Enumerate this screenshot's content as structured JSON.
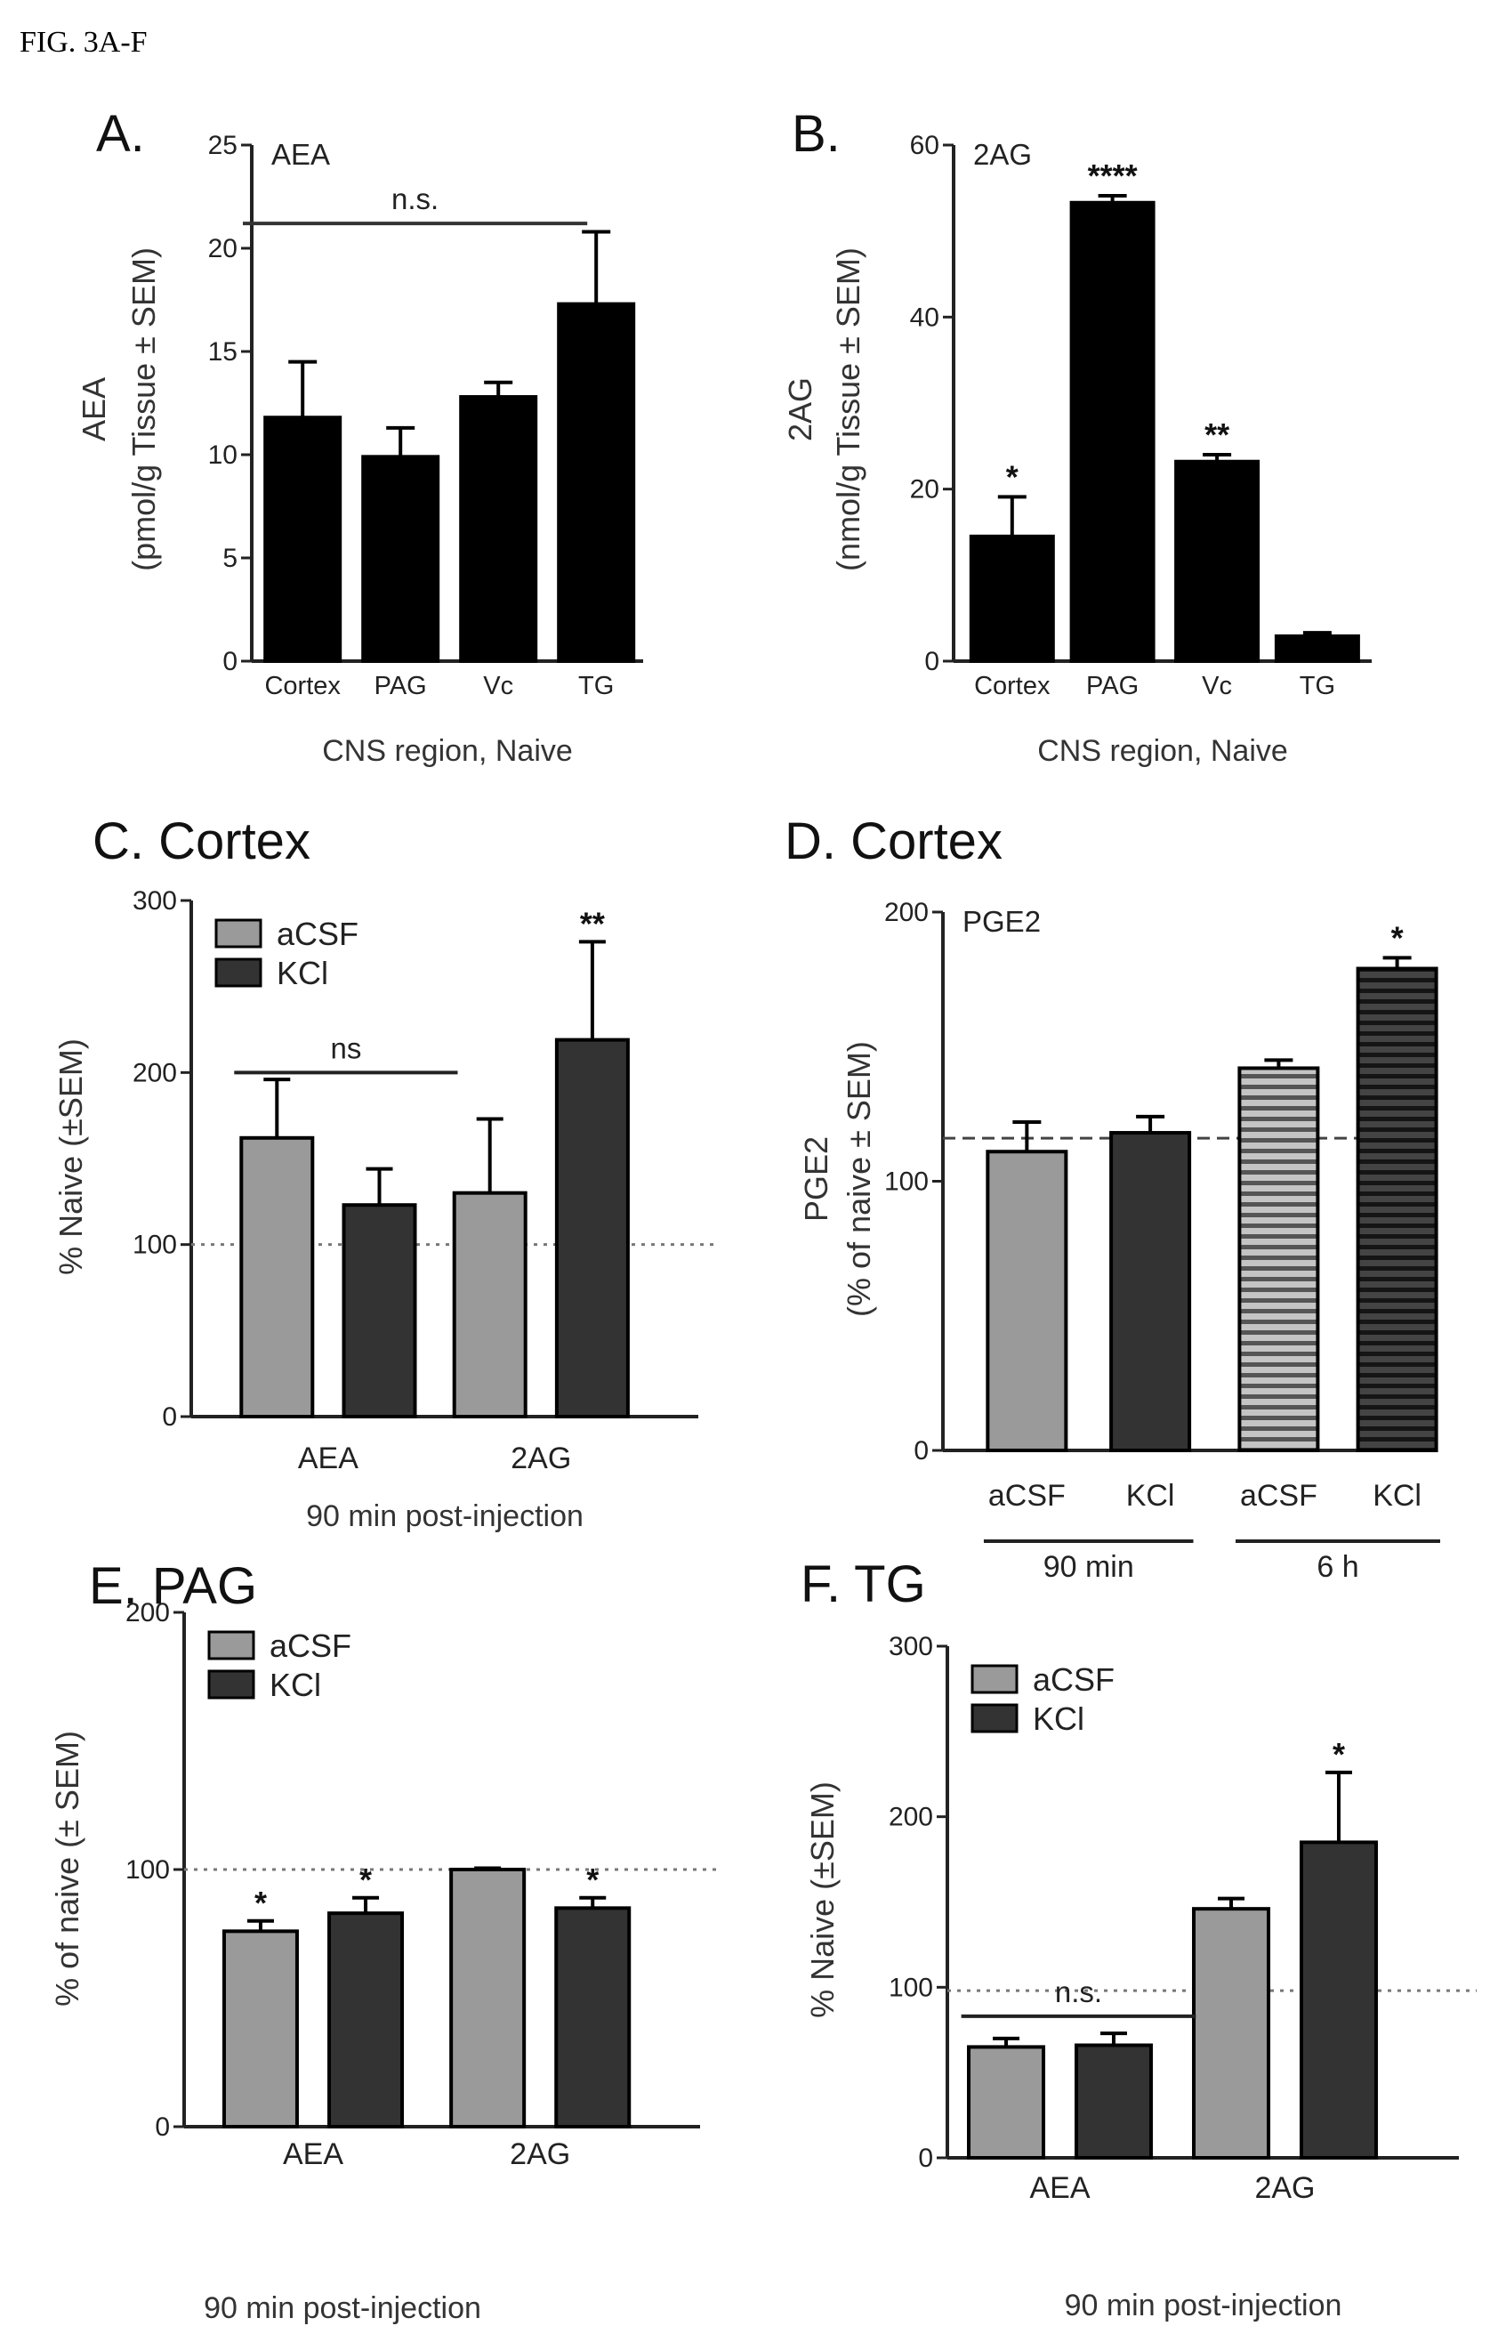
{
  "figure_title": "FIG. 3A-F",
  "colors": {
    "black": "#000000",
    "aCSF": "#9a9a9a",
    "KCl": "#333333",
    "axis": "#222222"
  },
  "chart_data": [
    {
      "id": "A",
      "panel_label": "A.",
      "type": "bar",
      "inset_label": "AEA",
      "categories": [
        "Cortex",
        "PAG",
        "Vc",
        "TG"
      ],
      "values": [
        11.8,
        9.9,
        12.8,
        17.3
      ],
      "errors": [
        2.7,
        1.4,
        0.7,
        3.5
      ],
      "ylabel_line1": "AEA",
      "ylabel_line2": "(pmol/g Tissue ± SEM)",
      "xlabel": "CNS region, Naive",
      "ylim": [
        0,
        25
      ],
      "yticks": [
        "0",
        "5",
        "10",
        "15",
        "20",
        "25"
      ],
      "significance": [
        "",
        "",
        "",
        ""
      ],
      "bracket": {
        "from": 0,
        "to": 3,
        "label": "n.s.",
        "y": 21.2
      }
    },
    {
      "id": "B",
      "panel_label": "B.",
      "type": "bar",
      "inset_label": "2AG",
      "categories": [
        "Cortex",
        "PAG",
        "Vc",
        "TG"
      ],
      "values": [
        14.5,
        53.3,
        23.2,
        2.9
      ],
      "errors": [
        4.6,
        0.8,
        0.8,
        0.4
      ],
      "ylabel_line1": "2AG",
      "ylabel_line2": "(nmol/g Tissue ± SEM)",
      "xlabel": "CNS region,  Naive",
      "ylim": [
        0,
        60
      ],
      "yticks": [
        "0",
        "20",
        "40",
        "60"
      ],
      "significance": [
        "*",
        "****",
        "**",
        ""
      ]
    },
    {
      "id": "C",
      "panel_label": "C. Cortex",
      "type": "bar",
      "categories": [
        "AEA",
        "2AG"
      ],
      "series": [
        {
          "name": "aCSF",
          "values": [
            162,
            130
          ],
          "errors": [
            34,
            43
          ]
        },
        {
          "name": "KCl",
          "values": [
            123,
            219
          ],
          "errors": [
            21,
            57
          ]
        }
      ],
      "significance": [
        [
          "",
          ""
        ],
        [
          "",
          "**"
        ]
      ],
      "bracket": {
        "from": [
          0,
          0
        ],
        "to": [
          0,
          1
        ],
        "label": "ns",
        "y": 200
      },
      "reference_line": 100,
      "ylabel_line1": "% Naive (±SEM)",
      "xlabel": "90 min post-injection",
      "ylim": [
        0,
        300
      ],
      "yticks": [
        "0",
        "100",
        "200",
        "300"
      ]
    },
    {
      "id": "D",
      "panel_label": "D. Cortex",
      "type": "bar",
      "inset_label": "PGE2",
      "categories": [
        "aCSF",
        "KCl",
        "aCSF",
        "KCl"
      ],
      "values": [
        111,
        118,
        142,
        179
      ],
      "errors": [
        11,
        6,
        3,
        4
      ],
      "significance": [
        "",
        "",
        "",
        "*"
      ],
      "groups": [
        {
          "label": "90 min",
          "from": 0,
          "to": 1
        },
        {
          "label": "6 h",
          "from": 2,
          "to": 3
        }
      ],
      "reference_line": 116,
      "ylabel_line1": "PGE2",
      "ylabel_line2": "(% of naive ± SEM)",
      "ylim": [
        0,
        200
      ],
      "yticks": [
        "0",
        "100",
        "200"
      ]
    },
    {
      "id": "E",
      "panel_label": "E. PAG",
      "type": "bar",
      "categories": [
        "AEA",
        "2AG"
      ],
      "series": [
        {
          "name": "aCSF",
          "values": [
            76,
            100
          ],
          "errors": [
            4,
            0.5
          ]
        },
        {
          "name": "KCl",
          "values": [
            83,
            85
          ],
          "errors": [
            6,
            4
          ]
        }
      ],
      "significance": [
        [
          "*",
          ""
        ],
        [
          "*",
          "*"
        ]
      ],
      "reference_line": 100,
      "ylabel_line1": "% of naive (± SEM)",
      "xlabel": "90 min post-injection",
      "ylim": [
        0,
        200
      ],
      "yticks": [
        "0",
        "100",
        "200"
      ]
    },
    {
      "id": "F",
      "panel_label": "F. TG",
      "type": "bar",
      "categories": [
        "AEA",
        "2AG"
      ],
      "series": [
        {
          "name": "aCSF",
          "values": [
            65,
            146
          ],
          "errors": [
            5,
            6
          ]
        },
        {
          "name": "KCl",
          "values": [
            66,
            185
          ],
          "errors": [
            7,
            41
          ]
        }
      ],
      "significance": [
        [
          "",
          ""
        ],
        [
          "",
          "*"
        ]
      ],
      "bracket": {
        "from": [
          0,
          0
        ],
        "to": [
          0,
          1
        ],
        "label": "n.s.",
        "y": 83
      },
      "reference_line": 98,
      "ylabel_line1": "% Naive (±SEM)",
      "xlabel": "90 min post-injection",
      "ylim": [
        0,
        300
      ],
      "yticks": [
        "0",
        "100",
        "200",
        "300"
      ]
    }
  ]
}
